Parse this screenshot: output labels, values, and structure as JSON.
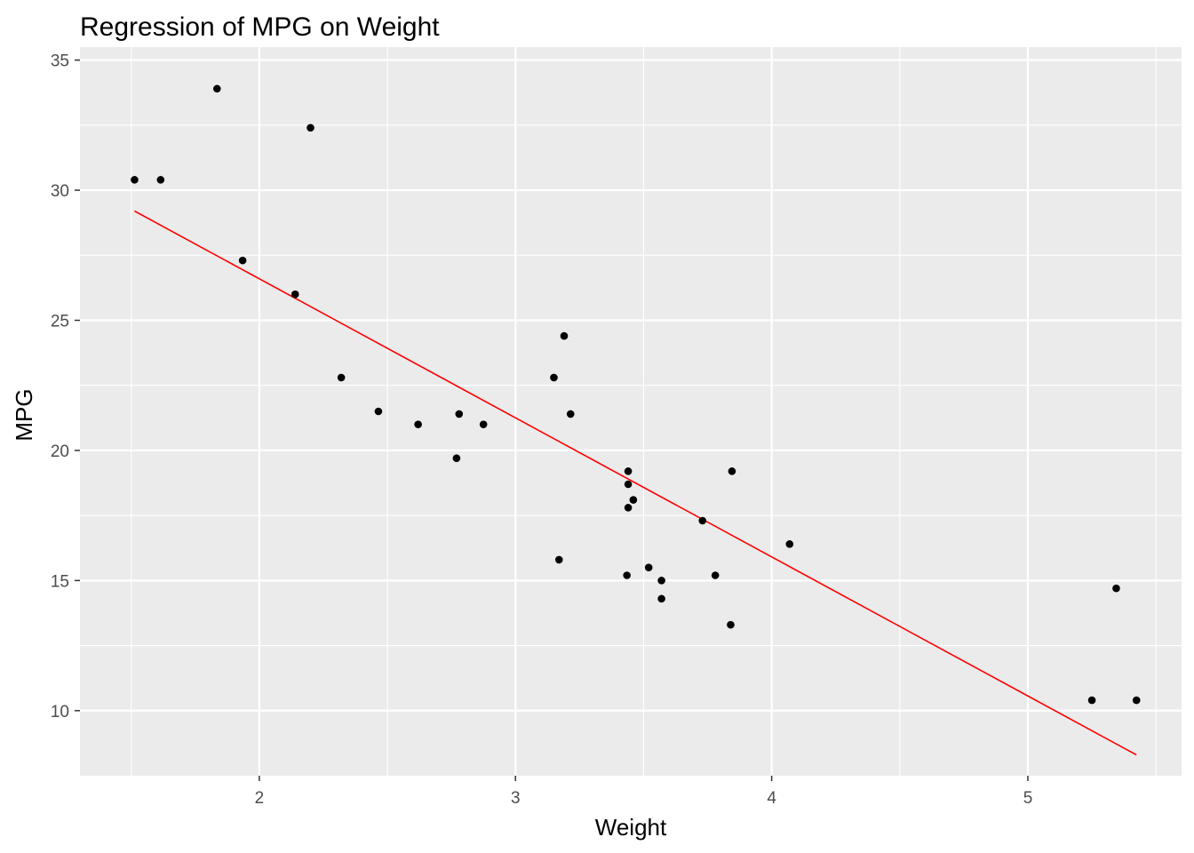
{
  "chart_data": {
    "type": "scatter",
    "title": "Regression of MPG on Weight",
    "xlabel": "Weight",
    "ylabel": "MPG",
    "xlim": [
      1.3,
      5.6
    ],
    "ylim": [
      7.5,
      35.5
    ],
    "x_ticks": [
      2,
      3,
      4,
      5
    ],
    "y_ticks": [
      10,
      15,
      20,
      25,
      30,
      35
    ],
    "x_minor": [
      1.5,
      2.5,
      3.5,
      4.5,
      5.5
    ],
    "y_minor": [
      12.5,
      17.5,
      22.5,
      27.5,
      32.5
    ],
    "grid": true,
    "panel_background": "#ebebeb",
    "point_color": "#000000",
    "line_color": "#ff0000",
    "points": [
      {
        "x": 2.62,
        "y": 21.0
      },
      {
        "x": 2.875,
        "y": 21.0
      },
      {
        "x": 2.32,
        "y": 22.8
      },
      {
        "x": 3.215,
        "y": 21.4
      },
      {
        "x": 3.44,
        "y": 18.7
      },
      {
        "x": 3.46,
        "y": 18.1
      },
      {
        "x": 3.57,
        "y": 14.3
      },
      {
        "x": 3.19,
        "y": 24.4
      },
      {
        "x": 3.15,
        "y": 22.8
      },
      {
        "x": 3.44,
        "y": 19.2
      },
      {
        "x": 3.44,
        "y": 17.8
      },
      {
        "x": 4.07,
        "y": 16.4
      },
      {
        "x": 3.73,
        "y": 17.3
      },
      {
        "x": 3.78,
        "y": 15.2
      },
      {
        "x": 5.25,
        "y": 10.4
      },
      {
        "x": 5.424,
        "y": 10.4
      },
      {
        "x": 5.345,
        "y": 14.7
      },
      {
        "x": 2.2,
        "y": 32.4
      },
      {
        "x": 1.615,
        "y": 30.4
      },
      {
        "x": 1.835,
        "y": 33.9
      },
      {
        "x": 2.465,
        "y": 21.5
      },
      {
        "x": 3.52,
        "y": 15.5
      },
      {
        "x": 3.435,
        "y": 15.2
      },
      {
        "x": 3.84,
        "y": 13.3
      },
      {
        "x": 3.845,
        "y": 19.2
      },
      {
        "x": 1.935,
        "y": 27.3
      },
      {
        "x": 2.14,
        "y": 26.0
      },
      {
        "x": 1.513,
        "y": 30.4
      },
      {
        "x": 3.17,
        "y": 15.8
      },
      {
        "x": 2.77,
        "y": 19.7
      },
      {
        "x": 3.57,
        "y": 15.0
      },
      {
        "x": 2.78,
        "y": 21.4
      }
    ],
    "regression_line": {
      "intercept": 37.285,
      "slope": -5.344,
      "x_range": [
        1.513,
        5.424
      ]
    }
  }
}
